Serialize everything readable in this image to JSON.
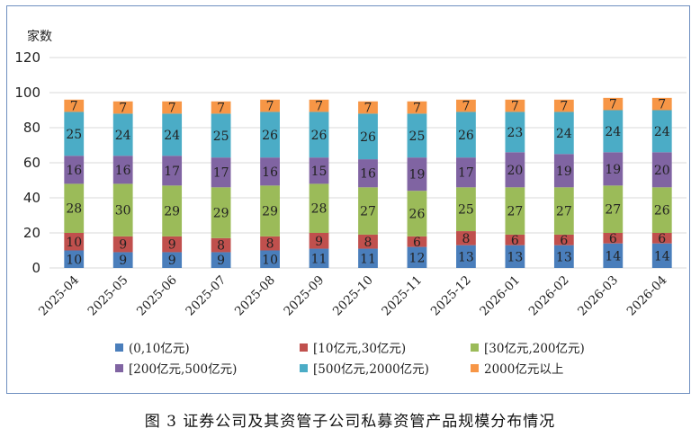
{
  "chart_data": {
    "type": "bar",
    "stacked": true,
    "ylabel": "家数",
    "ylim": [
      0,
      120
    ],
    "yticks": [
      0,
      20,
      40,
      60,
      80,
      100,
      120
    ],
    "grid": true,
    "legend_position": "bottom",
    "categories": [
      "2025-04",
      "2025-05",
      "2025-06",
      "2025-07",
      "2025-08",
      "2025-09",
      "2025-10",
      "2025-11",
      "2025-12",
      "2026-01",
      "2026-02",
      "2026-03",
      "2026-04"
    ],
    "series": [
      {
        "name": "(0,10亿元)",
        "color": "#4a7ebb",
        "values": [
          10,
          9,
          9,
          9,
          10,
          11,
          11,
          12,
          13,
          13,
          13,
          14,
          14
        ]
      },
      {
        "name": "[10亿元,30亿元)",
        "color": "#c0504d",
        "values": [
          10,
          9,
          9,
          8,
          8,
          9,
          8,
          6,
          8,
          6,
          6,
          6,
          6
        ]
      },
      {
        "name": "[30亿元,200亿元)",
        "color": "#9bbb59",
        "values": [
          28,
          30,
          29,
          29,
          29,
          28,
          27,
          26,
          25,
          27,
          27,
          27,
          26
        ]
      },
      {
        "name": "[200亿元,500亿元)",
        "color": "#8064a2",
        "values": [
          16,
          16,
          17,
          17,
          16,
          15,
          16,
          19,
          17,
          20,
          19,
          19,
          20
        ]
      },
      {
        "name": "[500亿元,2000亿元)",
        "color": "#4bacc6",
        "values": [
          25,
          24,
          24,
          25,
          26,
          26,
          26,
          25,
          26,
          23,
          24,
          24,
          24
        ]
      },
      {
        "name": "2000亿元以上",
        "color": "#f79646",
        "values": [
          7,
          7,
          7,
          7,
          7,
          7,
          7,
          7,
          7,
          7,
          7,
          7,
          7
        ]
      }
    ]
  },
  "caption": "图 3   证券公司及其资管子公司私募资管产品规模分布情况"
}
